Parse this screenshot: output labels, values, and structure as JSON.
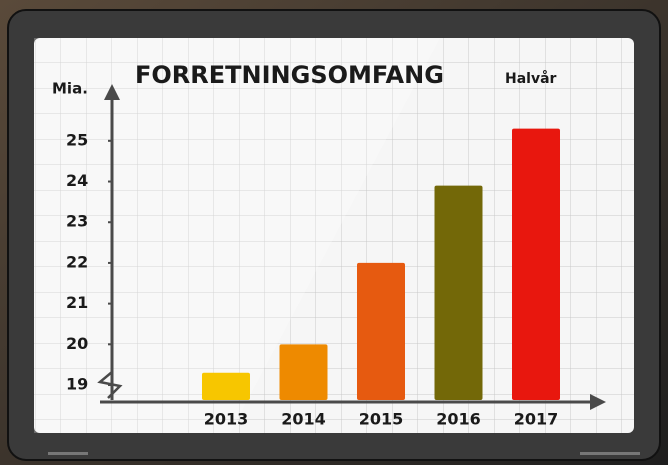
{
  "chart_data": {
    "type": "bar",
    "title": "FORRETNINGSOMFANG",
    "subtitle": "Halvår",
    "y_label": "Mia.",
    "categories": [
      "2013",
      "2014",
      "2015",
      "2016",
      "2017"
    ],
    "values": [
      19.3,
      20.0,
      22.0,
      23.9,
      25.3
    ],
    "colors": [
      "#f7c600",
      "#ee8a00",
      "#e65a10",
      "#736808",
      "#e8170e"
    ],
    "ylim": [
      18.6,
      26.2
    ],
    "yticks": [
      19,
      20,
      21,
      22,
      23,
      24,
      25
    ],
    "grid": true
  }
}
